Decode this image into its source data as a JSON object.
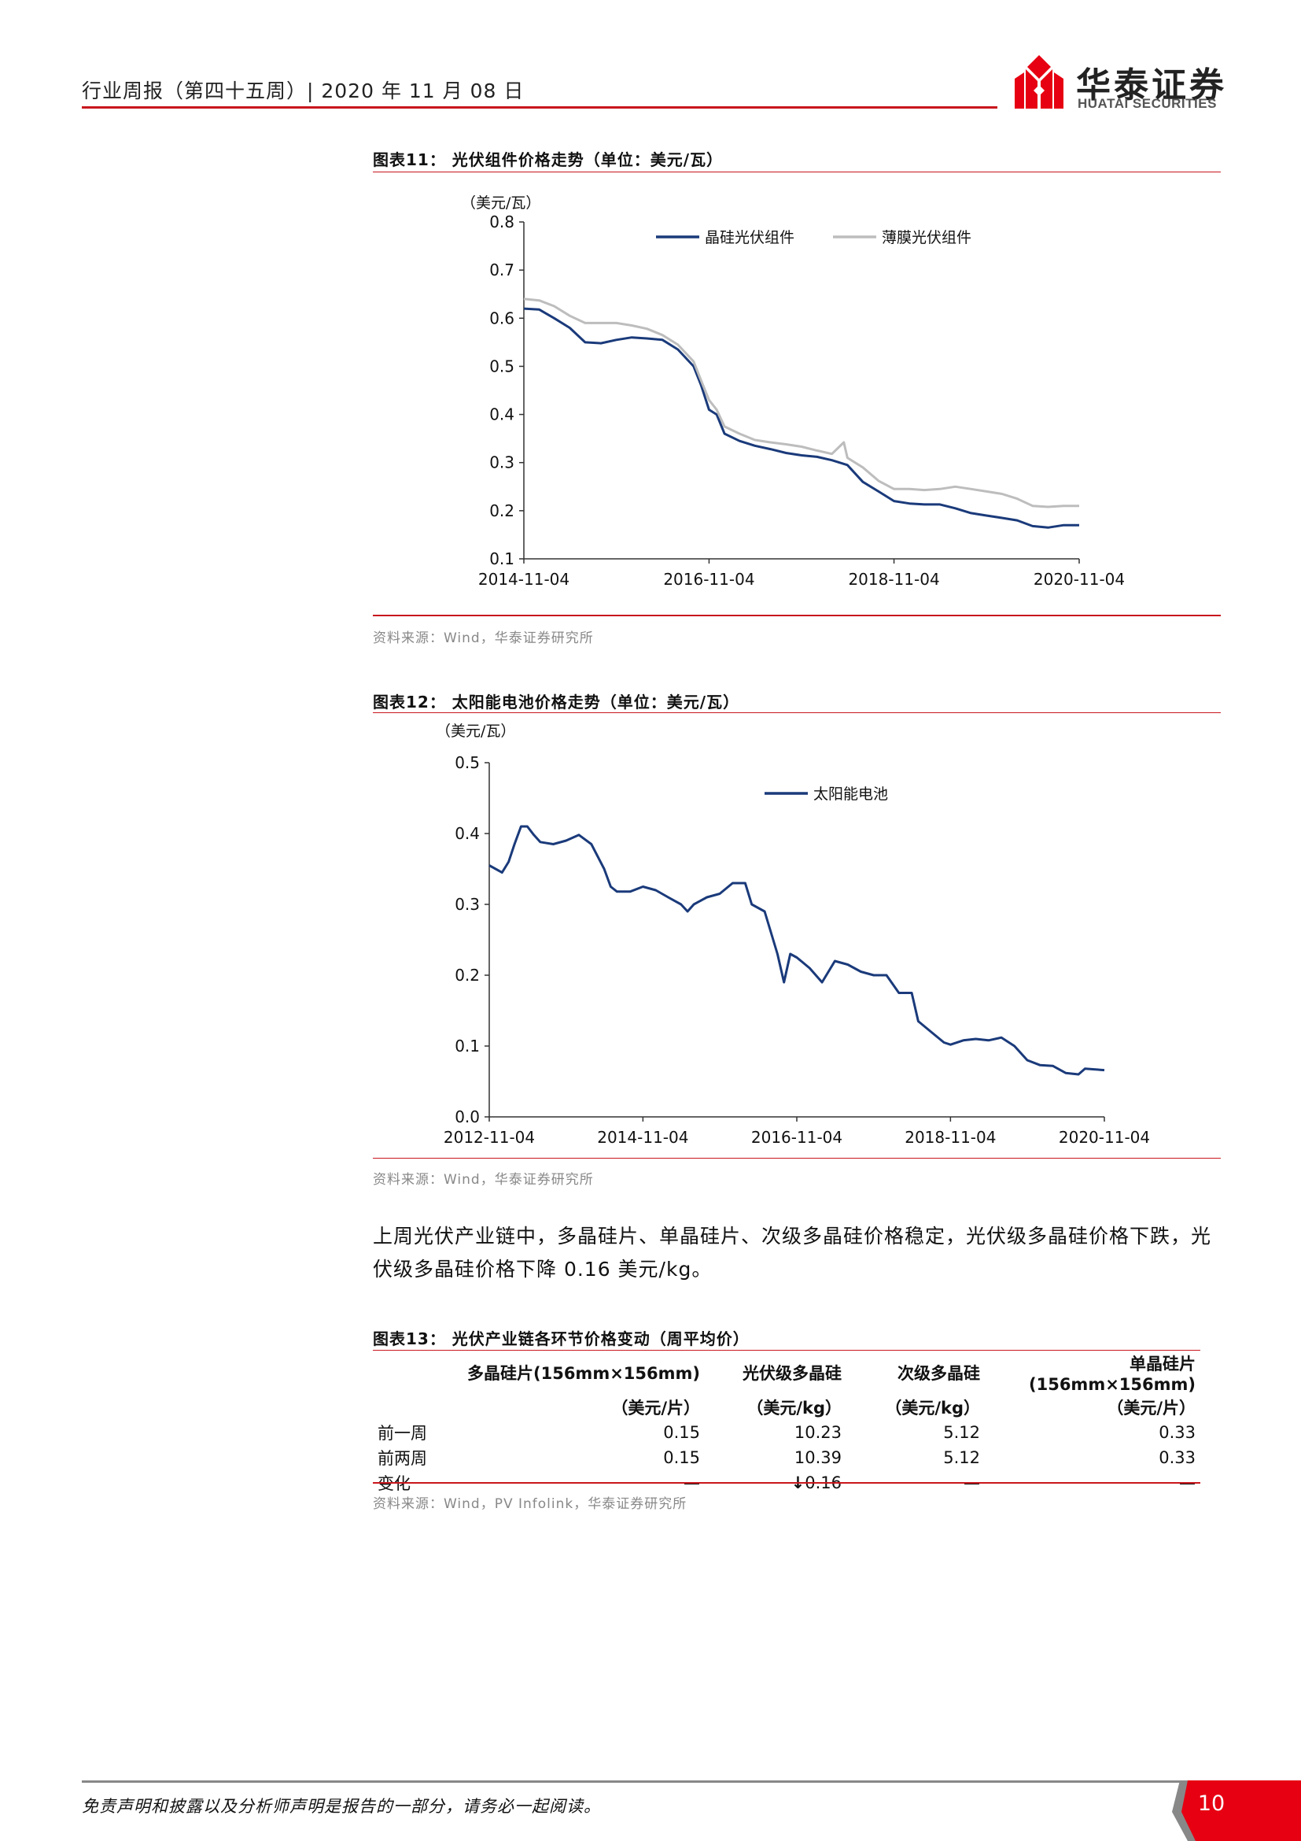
{
  "header": {
    "title": "行业周报（第四十五周）| 2020 年 11 月 08 日",
    "logo_cn": "华泰证券",
    "logo_en": "HUATAI SECURITIES"
  },
  "figure11": {
    "title": "图表11：  光伏组件价格走势（单位：美元/瓦）",
    "source": "资料来源：Wind，华泰证券研究所"
  },
  "figure12": {
    "title": "图表12：  太阳能电池价格走势（单位：美元/瓦）",
    "source": "资料来源：Wind，华泰证券研究所"
  },
  "chart_data": [
    {
      "type": "line",
      "unit_label": "（美元/瓦）",
      "ylim": [
        0.1,
        0.8
      ],
      "yticks": [
        "0.1",
        "0.2",
        "0.3",
        "0.4",
        "0.5",
        "0.6",
        "0.7",
        "0.8"
      ],
      "xticks": [
        "2014-11-04",
        "2016-11-04",
        "2018-11-04",
        "2020-11-04"
      ],
      "legend": "top",
      "series": [
        {
          "name": "晶硅光伏组件",
          "color": "#1a3a7a",
          "points": [
            [
              "2014-11-04",
              0.62
            ],
            [
              "2015-01-04",
              0.618
            ],
            [
              "2015-03-04",
              0.6
            ],
            [
              "2015-05-04",
              0.58
            ],
            [
              "2015-07-04",
              0.55
            ],
            [
              "2015-09-04",
              0.548
            ],
            [
              "2015-11-04",
              0.555
            ],
            [
              "2016-01-04",
              0.56
            ],
            [
              "2016-03-04",
              0.558
            ],
            [
              "2016-05-04",
              0.555
            ],
            [
              "2016-07-04",
              0.535
            ],
            [
              "2016-09-04",
              0.5
            ],
            [
              "2016-10-04",
              0.46
            ],
            [
              "2016-11-04",
              0.41
            ],
            [
              "2016-12-04",
              0.4
            ],
            [
              "2017-01-04",
              0.36
            ],
            [
              "2017-03-04",
              0.345
            ],
            [
              "2017-05-04",
              0.335
            ],
            [
              "2017-07-04",
              0.328
            ],
            [
              "2017-09-04",
              0.32
            ],
            [
              "2017-11-04",
              0.315
            ],
            [
              "2018-01-04",
              0.312
            ],
            [
              "2018-03-04",
              0.305
            ],
            [
              "2018-05-04",
              0.295
            ],
            [
              "2018-07-04",
              0.26
            ],
            [
              "2018-09-04",
              0.24
            ],
            [
              "2018-11-04",
              0.22
            ],
            [
              "2019-01-04",
              0.215
            ],
            [
              "2019-03-04",
              0.213
            ],
            [
              "2019-05-04",
              0.213
            ],
            [
              "2019-07-04",
              0.205
            ],
            [
              "2019-09-04",
              0.195
            ],
            [
              "2019-11-04",
              0.19
            ],
            [
              "2020-01-04",
              0.185
            ],
            [
              "2020-03-04",
              0.18
            ],
            [
              "2020-05-04",
              0.168
            ],
            [
              "2020-07-04",
              0.165
            ],
            [
              "2020-09-04",
              0.17
            ],
            [
              "2020-11-04",
              0.17
            ]
          ]
        },
        {
          "name": "薄膜光伏组件",
          "color": "#bdbdbd",
          "points": [
            [
              "2014-11-04",
              0.64
            ],
            [
              "2015-01-04",
              0.637
            ],
            [
              "2015-03-04",
              0.625
            ],
            [
              "2015-05-04",
              0.605
            ],
            [
              "2015-07-04",
              0.59
            ],
            [
              "2015-09-04",
              0.59
            ],
            [
              "2015-11-04",
              0.59
            ],
            [
              "2016-01-04",
              0.585
            ],
            [
              "2016-03-04",
              0.578
            ],
            [
              "2016-05-04",
              0.565
            ],
            [
              "2016-07-04",
              0.545
            ],
            [
              "2016-09-04",
              0.51
            ],
            [
              "2016-10-04",
              0.47
            ],
            [
              "2016-11-04",
              0.43
            ],
            [
              "2016-12-04",
              0.41
            ],
            [
              "2017-01-04",
              0.375
            ],
            [
              "2017-03-04",
              0.36
            ],
            [
              "2017-05-04",
              0.347
            ],
            [
              "2017-07-04",
              0.342
            ],
            [
              "2017-09-04",
              0.338
            ],
            [
              "2017-11-04",
              0.333
            ],
            [
              "2018-01-04",
              0.325
            ],
            [
              "2018-03-04",
              0.318
            ],
            [
              "2018-04-20",
              0.342
            ],
            [
              "2018-05-04",
              0.31
            ],
            [
              "2018-07-04",
              0.29
            ],
            [
              "2018-09-04",
              0.262
            ],
            [
              "2018-11-04",
              0.245
            ],
            [
              "2019-01-04",
              0.245
            ],
            [
              "2019-03-04",
              0.243
            ],
            [
              "2019-05-04",
              0.245
            ],
            [
              "2019-07-04",
              0.25
            ],
            [
              "2019-09-04",
              0.245
            ],
            [
              "2019-11-04",
              0.24
            ],
            [
              "2020-01-04",
              0.235
            ],
            [
              "2020-03-04",
              0.225
            ],
            [
              "2020-05-04",
              0.21
            ],
            [
              "2020-07-04",
              0.208
            ],
            [
              "2020-09-04",
              0.21
            ],
            [
              "2020-11-04",
              0.21
            ]
          ]
        }
      ]
    },
    {
      "type": "line",
      "unit_label": "（美元/瓦）",
      "ylim": [
        0.0,
        0.5
      ],
      "yticks": [
        "0.0",
        "0.1",
        "0.2",
        "0.3",
        "0.4",
        "0.5"
      ],
      "xticks": [
        "2012-11-04",
        "2014-11-04",
        "2016-11-04",
        "2018-11-04",
        "2020-11-04"
      ],
      "legend": "top",
      "series": [
        {
          "name": "太阳能电池",
          "color": "#1a3a7a",
          "points": [
            [
              "2012-11-04",
              0.355
            ],
            [
              "2013-01-04",
              0.345
            ],
            [
              "2013-02-04",
              0.36
            ],
            [
              "2013-03-04",
              0.385
            ],
            [
              "2013-04-04",
              0.41
            ],
            [
              "2013-05-04",
              0.41
            ],
            [
              "2013-06-04",
              0.398
            ],
            [
              "2013-07-04",
              0.388
            ],
            [
              "2013-09-04",
              0.385
            ],
            [
              "2013-11-04",
              0.39
            ],
            [
              "2014-01-04",
              0.398
            ],
            [
              "2014-03-04",
              0.385
            ],
            [
              "2014-05-04",
              0.35
            ],
            [
              "2014-06-04",
              0.325
            ],
            [
              "2014-07-04",
              0.318
            ],
            [
              "2014-09-04",
              0.318
            ],
            [
              "2014-11-04",
              0.325
            ],
            [
              "2015-01-04",
              0.32
            ],
            [
              "2015-03-04",
              0.31
            ],
            [
              "2015-05-04",
              0.3
            ],
            [
              "2015-06-04",
              0.29
            ],
            [
              "2015-07-04",
              0.3
            ],
            [
              "2015-09-04",
              0.31
            ],
            [
              "2015-11-04",
              0.315
            ],
            [
              "2016-01-04",
              0.33
            ],
            [
              "2016-03-04",
              0.33
            ],
            [
              "2016-04-04",
              0.3
            ],
            [
              "2016-06-04",
              0.29
            ],
            [
              "2016-08-04",
              0.23
            ],
            [
              "2016-09-04",
              0.19
            ],
            [
              "2016-10-04",
              0.23
            ],
            [
              "2016-11-04",
              0.225
            ],
            [
              "2017-01-04",
              0.21
            ],
            [
              "2017-03-04",
              0.19
            ],
            [
              "2017-05-04",
              0.22
            ],
            [
              "2017-07-04",
              0.215
            ],
            [
              "2017-09-04",
              0.205
            ],
            [
              "2017-11-04",
              0.2
            ],
            [
              "2018-01-04",
              0.2
            ],
            [
              "2018-03-04",
              0.175
            ],
            [
              "2018-05-04",
              0.175
            ],
            [
              "2018-06-04",
              0.135
            ],
            [
              "2018-08-04",
              0.12
            ],
            [
              "2018-10-04",
              0.105
            ],
            [
              "2018-11-04",
              0.102
            ],
            [
              "2019-01-04",
              0.108
            ],
            [
              "2019-03-04",
              0.11
            ],
            [
              "2019-05-04",
              0.108
            ],
            [
              "2019-07-04",
              0.112
            ],
            [
              "2019-09-04",
              0.1
            ],
            [
              "2019-11-04",
              0.08
            ],
            [
              "2020-01-04",
              0.073
            ],
            [
              "2020-03-04",
              0.072
            ],
            [
              "2020-05-04",
              0.062
            ],
            [
              "2020-07-04",
              0.06
            ],
            [
              "2020-08-04",
              0.068
            ],
            [
              "2020-11-04",
              0.066
            ]
          ]
        }
      ]
    }
  ],
  "paragraph": "上周光伏产业链中，多晶硅片、单晶硅片、次级多晶硅价格稳定，光伏级多晶硅价格下跌，光伏级多晶硅价格下降 0.16 美元/kg。",
  "table": {
    "title": "图表13：  光伏产业链各环节价格变动（周平均价）",
    "headers": [
      "",
      "多晶硅片(156mm×156mm)",
      "光伏级多晶硅",
      "次级多晶硅",
      "单晶硅片(156mm×156mm)"
    ],
    "units": [
      "",
      "（美元/片）",
      "（美元/kg）",
      "（美元/kg）",
      "（美元/片）"
    ],
    "rows": [
      [
        "前一周",
        "0.15",
        "10.23",
        "5.12",
        "0.33"
      ],
      [
        "前两周",
        "0.15",
        "10.39",
        "5.12",
        "0.33"
      ],
      [
        "变化",
        "—",
        "0.16",
        "—",
        "—"
      ]
    ],
    "change_arrow": "↓",
    "source": "资料来源：Wind，PV Infolink，华泰证券研究所"
  },
  "footer": {
    "disclaimer": "免责声明和披露以及分析师声明是报告的一部分，请务必一起阅读。",
    "page": "10"
  },
  "colors": {
    "brand_red": "#c8161d",
    "series_blue": "#1a3a7a",
    "series_gray": "#bdbdbd"
  }
}
